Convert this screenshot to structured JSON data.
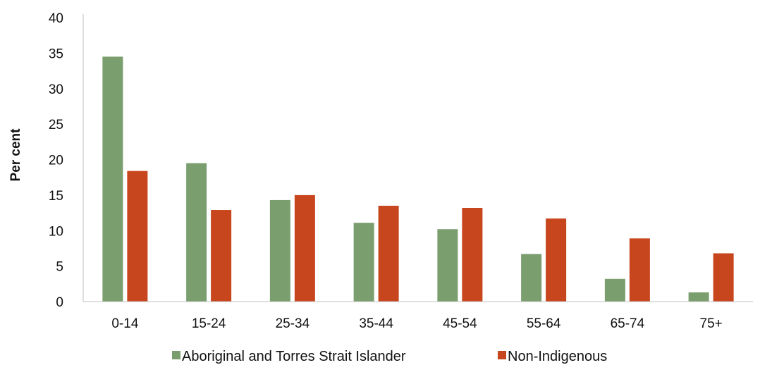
{
  "chart_data": {
    "type": "bar",
    "title": "",
    "xlabel": "",
    "ylabel": "Per cent",
    "ylim": [
      0,
      40
    ],
    "yticks": [
      0,
      5,
      10,
      15,
      20,
      25,
      30,
      35,
      40
    ],
    "grid": false,
    "legend_position": "bottom",
    "categories": [
      "0-14",
      "15-24",
      "25-34",
      "35-44",
      "45-54",
      "55-64",
      "65-74",
      "75+"
    ],
    "series": [
      {
        "name": "Aboriginal and Torres Strait Islander",
        "color": "#7a9e6d",
        "values": [
          34.5,
          19.5,
          14.3,
          11.1,
          10.2,
          6.7,
          3.2,
          1.3
        ]
      },
      {
        "name": "Non-Indigenous",
        "color": "#c8461e",
        "values": [
          18.4,
          12.9,
          15.0,
          13.5,
          13.2,
          11.7,
          8.9,
          6.8
        ]
      }
    ]
  }
}
